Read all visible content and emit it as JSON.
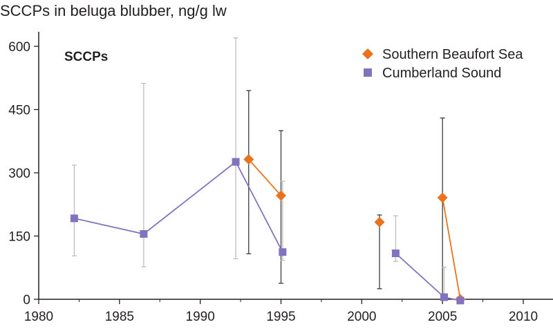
{
  "chart_data": {
    "type": "scatter",
    "title": "SCCPs in beluga blubber, ng/g lw",
    "inner_label": "SCCPs",
    "xlabel": "",
    "ylabel": "",
    "xlim": [
      1980,
      2012
    ],
    "ylim": [
      0,
      620
    ],
    "xticks": [
      1980,
      1985,
      1990,
      1995,
      2000,
      2005,
      2010
    ],
    "yticks": [
      0,
      150,
      300,
      450,
      600
    ],
    "grid": false,
    "legend_position": "top-right",
    "series": [
      {
        "name": "Southern Beaufort Sea",
        "marker": "diamond",
        "color": "#e8731c",
        "bar_color": "#3a3a3a",
        "points": [
          {
            "x": 1993.0,
            "y": 332,
            "low": 108,
            "high": 495,
            "line_from_prev": false
          },
          {
            "x": 1995.0,
            "y": 246,
            "low": 38,
            "high": 400,
            "line_from_prev": true
          },
          {
            "x": 2001.1,
            "y": 183,
            "low": 25,
            "high": 200,
            "line_from_prev": false
          },
          {
            "x": 2005.0,
            "y": 241,
            "low": 0,
            "high": 430,
            "line_from_prev": false
          },
          {
            "x": 2006.1,
            "y": 0,
            "low": 0,
            "high": 0,
            "line_from_prev": true
          }
        ]
      },
      {
        "name": "Cumberland Sound",
        "marker": "square",
        "color": "#8272c0",
        "bar_color": "#bdbdbd",
        "points": [
          {
            "x": 1982.2,
            "y": 192,
            "low": 103,
            "high": 318,
            "line_from_prev": false
          },
          {
            "x": 1986.5,
            "y": 155,
            "low": 77,
            "high": 512,
            "line_from_prev": true
          },
          {
            "x": 1992.2,
            "y": 326,
            "low": 96,
            "high": 620,
            "line_from_prev": true
          },
          {
            "x": 1995.1,
            "y": 112,
            "low": 92,
            "high": 280,
            "line_from_prev": true
          },
          {
            "x": 2002.1,
            "y": 109,
            "low": 90,
            "high": 198,
            "line_from_prev": false
          },
          {
            "x": 2005.1,
            "y": 5,
            "low": 0,
            "high": 76,
            "line_from_prev": true
          },
          {
            "x": 2006.1,
            "y": -3,
            "low": -3,
            "high": -3,
            "line_from_prev": true
          }
        ]
      }
    ]
  }
}
